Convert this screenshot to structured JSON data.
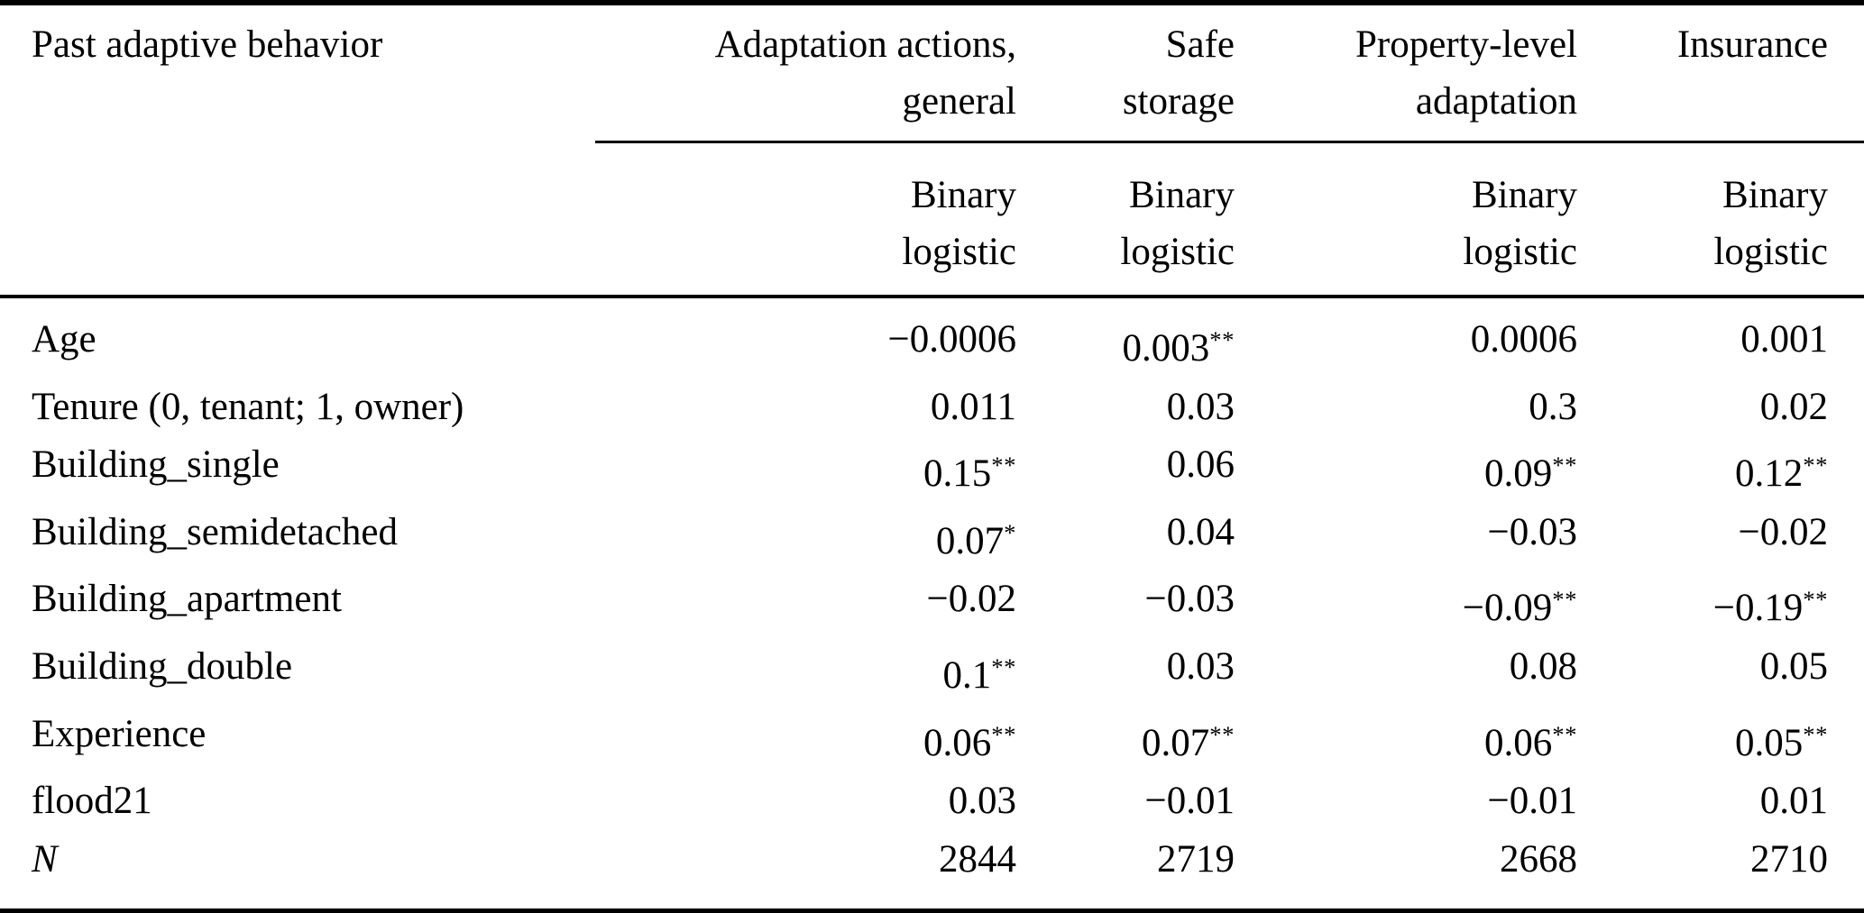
{
  "table": {
    "corner_label": "Past adaptive behavior",
    "column_groups": [
      {
        "name": "adaptation-actions-general",
        "lines": [
          "Adaptation actions,",
          "general"
        ]
      },
      {
        "name": "safe-storage",
        "lines": [
          "Safe",
          "storage"
        ]
      },
      {
        "name": "property-level-adaptation",
        "lines": [
          "Property-level",
          "adaptation"
        ]
      },
      {
        "name": "insurance",
        "lines": [
          "Insurance"
        ]
      }
    ],
    "method_label_lines": [
      "Binary",
      "logistic"
    ],
    "rows": [
      {
        "label": "Age",
        "italic": false,
        "values": [
          "−0.0006",
          "0.003**",
          "0.0006",
          "0.001"
        ]
      },
      {
        "label": "Tenure (0, tenant; 1, owner)",
        "italic": false,
        "values": [
          "0.011",
          "0.03",
          "0.3",
          "0.02"
        ]
      },
      {
        "label": "Building_single",
        "italic": false,
        "values": [
          "0.15**",
          "0.06",
          "0.09**",
          "0.12**"
        ]
      },
      {
        "label": "Building_semidetached",
        "italic": false,
        "values": [
          "0.07*",
          "0.04",
          "−0.03",
          "−0.02"
        ]
      },
      {
        "label": "Building_apartment",
        "italic": false,
        "values": [
          "−0.02",
          "−0.03",
          "−0.09**",
          "−0.19**"
        ]
      },
      {
        "label": "Building_double",
        "italic": false,
        "values": [
          "0.1**",
          "0.03",
          "0.08",
          "0.05"
        ]
      },
      {
        "label": "Experience",
        "italic": false,
        "values": [
          "0.06**",
          "0.07**",
          "0.06**",
          "0.05**"
        ]
      },
      {
        "label": "flood21",
        "italic": false,
        "values": [
          "0.03",
          "−0.01",
          "−0.01",
          "0.01"
        ]
      },
      {
        "label": "N",
        "italic": true,
        "values": [
          "2844",
          "2719",
          "2668",
          "2710"
        ]
      }
    ]
  }
}
